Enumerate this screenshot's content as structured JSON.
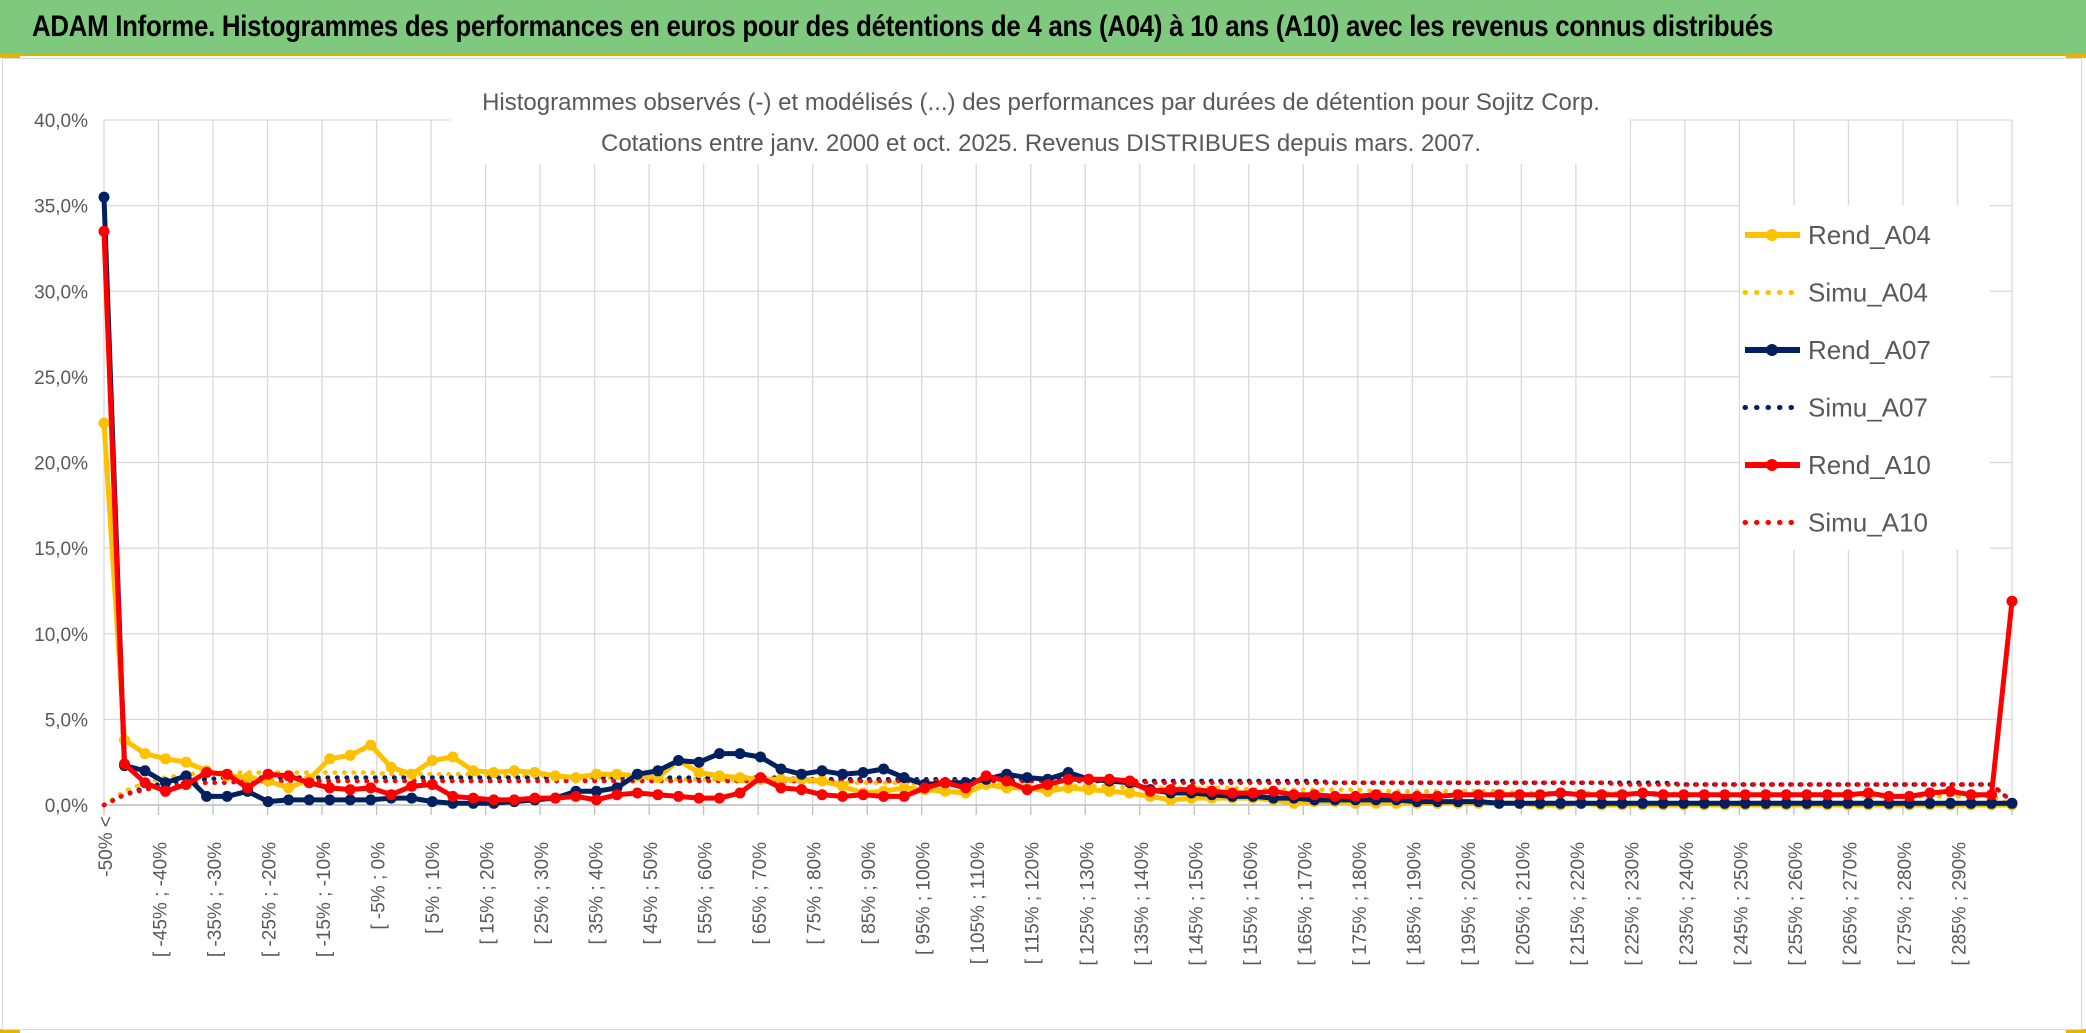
{
  "banner": {
    "title": "ADAM Informe. Histogrammes des performances en euros pour des détentions de 4 ans (A04) à 10 ans (A10) avec les revenus connus distribués"
  },
  "chart_data": {
    "type": "line",
    "title": "Histogrammes observés (-) et modélisés (...) des performances par durées de détention pour Sojitz Corp.",
    "subtitle": "Cotations entre janv. 2000 et oct. 2025. Revenus DISTRIBUES depuis mars. 2007.",
    "ylim": [
      0,
      40
    ],
    "y_ticks": [
      "0,0%",
      "5,0%",
      "10,0%",
      "15,0%",
      "20,0%",
      "25,0%",
      "30,0%",
      "35,0%",
      "40,0%"
    ],
    "grid": true,
    "legend_position": "right",
    "x_labels": [
      "-50% <",
      "[ -45% ; -40%",
      "[ -35% ; -30%",
      "[ -25% ; -20%",
      "[ -15% ; -10%",
      "[ -5% ; 0%",
      "[ 5% ; 10%",
      "[ 15% ; 20%",
      "[ 25% ; 30%",
      "[ 35% ; 40%",
      "[ 45% ; 50%",
      "[ 55% ; 60%",
      "[ 65% ; 70%",
      "[ 75% ; 80%",
      "[ 85% ; 90%",
      "[ 95% ; 100%",
      "[ 105% ; 110%",
      "[ 115% ; 120%",
      "[ 125% ; 130%",
      "[ 135% ; 140%",
      "[ 145% ; 150%",
      "[ 155% ; 160%",
      "[ 165% ; 170%",
      "[ 175% ; 180%",
      "[ 185% ; 190%",
      "[ 195% ; 200%",
      "[ 205% ; 210%",
      "[ 215% ; 220%",
      "[ 225% ; 230%",
      "[ 235% ; 240%",
      "[ 245% ; 250%",
      "[ 255% ; 260%",
      "[ 265% ; 270%",
      "[ 275% ; 280%",
      "[ 285% ; 290%"
    ],
    "series": [
      {
        "name": "Rend_A04",
        "color": "#ffc000",
        "style": "solid",
        "markers": true,
        "values": [
          22.3,
          3.8,
          3.0,
          2.7,
          2.5,
          2.0,
          1.7,
          1.6,
          1.4,
          1.0,
          1.5,
          2.7,
          2.9,
          3.5,
          2.2,
          1.8,
          2.6,
          2.8,
          2.0,
          1.9,
          2.0,
          1.9,
          1.7,
          1.6,
          1.8,
          1.8,
          1.7,
          1.6,
          2.6,
          1.9,
          1.7,
          1.6,
          1.5,
          1.5,
          1.5,
          1.4,
          1.1,
          0.7,
          0.8,
          1.0,
          0.9,
          0.8,
          0.7,
          1.2,
          1.0,
          1.0,
          0.8,
          1.0,
          0.9,
          0.8,
          0.7,
          0.5,
          0.3,
          0.4,
          0.4,
          0.4,
          0.4,
          0.3,
          0.1,
          0.2,
          0.2,
          0.1,
          0.1,
          0.1,
          0.1,
          0.1,
          0.1,
          0.1,
          0.1,
          0.1,
          0.0,
          0.0,
          0.1,
          0.0,
          0.0,
          0.0,
          0.0,
          0.0,
          0.0,
          0.0,
          0.0,
          0.0,
          0.0,
          0.0,
          0.0,
          0.0,
          0.0,
          0.0,
          0.0,
          0.0,
          0.0,
          0.0,
          0.0,
          0.0
        ]
      },
      {
        "name": "Simu_A04",
        "color": "#ffc000",
        "style": "dotted",
        "markers": false,
        "values": [
          0.0,
          0.8,
          1.3,
          1.6,
          1.8,
          1.9,
          1.9,
          1.9,
          1.9,
          1.9,
          1.9,
          1.9,
          1.9,
          1.9,
          1.8,
          1.8,
          1.8,
          1.8,
          1.8,
          1.7,
          1.7,
          1.7,
          1.7,
          1.6,
          1.6,
          1.6,
          1.6,
          1.5,
          1.5,
          1.5,
          1.5,
          1.4,
          1.4,
          1.4,
          1.4,
          1.3,
          1.3,
          1.3,
          1.3,
          1.3,
          1.2,
          1.2,
          1.2,
          1.2,
          1.2,
          1.1,
          1.1,
          1.1,
          1.1,
          1.1,
          1.0,
          1.0,
          1.0,
          1.0,
          1.0,
          1.0,
          0.9,
          0.9,
          0.9,
          0.9,
          0.9,
          0.9,
          0.8,
          0.8,
          0.8,
          0.8,
          0.8,
          0.8,
          0.8,
          0.7,
          0.7,
          0.7,
          0.7,
          0.7,
          0.7,
          0.7,
          0.7,
          0.6,
          0.6,
          0.6,
          0.6,
          0.6,
          0.6,
          0.6,
          0.6,
          0.6,
          0.5,
          0.5,
          0.5,
          0.5,
          0.5,
          0.5,
          0.5,
          0.0
        ]
      },
      {
        "name": "Rend_A07",
        "color": "#002060",
        "style": "solid",
        "markers": true,
        "values": [
          35.5,
          2.3,
          2.0,
          1.3,
          1.7,
          0.5,
          0.5,
          0.8,
          0.2,
          0.3,
          0.3,
          0.3,
          0.3,
          0.3,
          0.4,
          0.4,
          0.2,
          0.1,
          0.1,
          0.1,
          0.2,
          0.3,
          0.4,
          0.8,
          0.8,
          1.0,
          1.8,
          2.0,
          2.6,
          2.5,
          3.0,
          3.0,
          2.8,
          2.1,
          1.8,
          2.0,
          1.8,
          1.9,
          2.1,
          1.6,
          1.2,
          1.3,
          1.3,
          1.5,
          1.8,
          1.6,
          1.5,
          1.9,
          1.5,
          1.4,
          1.3,
          0.9,
          0.7,
          0.7,
          0.6,
          0.5,
          0.5,
          0.4,
          0.4,
          0.3,
          0.3,
          0.3,
          0.3,
          0.3,
          0.2,
          0.2,
          0.2,
          0.2,
          0.1,
          0.1,
          0.1,
          0.1,
          0.1,
          0.1,
          0.1,
          0.1,
          0.1,
          0.1,
          0.1,
          0.1,
          0.1,
          0.1,
          0.1,
          0.1,
          0.1,
          0.1,
          0.1,
          0.1,
          0.1,
          0.1,
          0.1,
          0.1,
          0.1,
          0.1
        ]
      },
      {
        "name": "Simu_A07",
        "color": "#002060",
        "style": "dotted",
        "markers": false,
        "values": [
          0.0,
          0.6,
          1.0,
          1.3,
          1.4,
          1.5,
          1.6,
          1.6,
          1.6,
          1.6,
          1.6,
          1.6,
          1.6,
          1.6,
          1.6,
          1.6,
          1.6,
          1.6,
          1.6,
          1.6,
          1.6,
          1.6,
          1.6,
          1.6,
          1.6,
          1.6,
          1.6,
          1.6,
          1.6,
          1.6,
          1.6,
          1.6,
          1.6,
          1.6,
          1.5,
          1.5,
          1.5,
          1.5,
          1.5,
          1.5,
          1.5,
          1.5,
          1.5,
          1.5,
          1.5,
          1.5,
          1.5,
          1.5,
          1.4,
          1.4,
          1.4,
          1.4,
          1.4,
          1.4,
          1.4,
          1.4,
          1.4,
          1.4,
          1.4,
          1.4,
          1.3,
          1.3,
          1.3,
          1.3,
          1.3,
          1.3,
          1.3,
          1.3,
          1.3,
          1.3,
          1.3,
          1.3,
          1.3,
          1.3,
          1.3,
          1.3,
          1.3,
          1.2,
          1.2,
          1.2,
          1.2,
          1.2,
          1.2,
          1.2,
          1.2,
          1.2,
          1.2,
          1.2,
          1.2,
          1.2,
          1.2,
          1.2,
          1.2,
          0.2
        ]
      },
      {
        "name": "Rend_A10",
        "color": "#ff0000",
        "style": "solid",
        "markers": true,
        "values": [
          33.5,
          2.4,
          1.3,
          0.8,
          1.2,
          1.9,
          1.8,
          1.0,
          1.8,
          1.7,
          1.3,
          1.0,
          0.9,
          1.0,
          0.6,
          1.1,
          1.2,
          0.5,
          0.4,
          0.3,
          0.3,
          0.4,
          0.4,
          0.5,
          0.3,
          0.6,
          0.7,
          0.6,
          0.5,
          0.4,
          0.4,
          0.7,
          1.6,
          1.0,
          0.9,
          0.6,
          0.5,
          0.6,
          0.5,
          0.5,
          1.0,
          1.3,
          1.0,
          1.7,
          1.4,
          0.9,
          1.2,
          1.5,
          1.5,
          1.5,
          1.4,
          0.8,
          0.9,
          0.9,
          0.8,
          0.7,
          0.7,
          0.8,
          0.6,
          0.6,
          0.5,
          0.5,
          0.6,
          0.5,
          0.5,
          0.5,
          0.6,
          0.6,
          0.6,
          0.6,
          0.6,
          0.7,
          0.6,
          0.6,
          0.6,
          0.7,
          0.6,
          0.6,
          0.6,
          0.6,
          0.6,
          0.6,
          0.6,
          0.6,
          0.6,
          0.6,
          0.7,
          0.5,
          0.5,
          0.7,
          0.8,
          0.6,
          0.6,
          11.9
        ]
      },
      {
        "name": "Simu_A10",
        "color": "#ff0000",
        "style": "dotted",
        "markers": false,
        "values": [
          0.0,
          0.6,
          0.9,
          1.1,
          1.2,
          1.3,
          1.3,
          1.4,
          1.4,
          1.4,
          1.4,
          1.4,
          1.4,
          1.4,
          1.4,
          1.4,
          1.4,
          1.4,
          1.4,
          1.4,
          1.4,
          1.4,
          1.4,
          1.4,
          1.4,
          1.4,
          1.4,
          1.4,
          1.4,
          1.4,
          1.4,
          1.4,
          1.4,
          1.4,
          1.4,
          1.4,
          1.4,
          1.4,
          1.4,
          1.4,
          1.4,
          1.4,
          1.4,
          1.4,
          1.4,
          1.4,
          1.4,
          1.4,
          1.4,
          1.4,
          1.4,
          1.3,
          1.3,
          1.3,
          1.3,
          1.3,
          1.3,
          1.3,
          1.3,
          1.3,
          1.3,
          1.3,
          1.3,
          1.3,
          1.3,
          1.3,
          1.3,
          1.3,
          1.3,
          1.3,
          1.3,
          1.3,
          1.3,
          1.3,
          1.2,
          1.2,
          1.2,
          1.2,
          1.2,
          1.2,
          1.2,
          1.2,
          1.2,
          1.2,
          1.2,
          1.2,
          1.2,
          1.2,
          1.2,
          1.2,
          1.2,
          1.2,
          1.2,
          0.2
        ]
      }
    ]
  }
}
